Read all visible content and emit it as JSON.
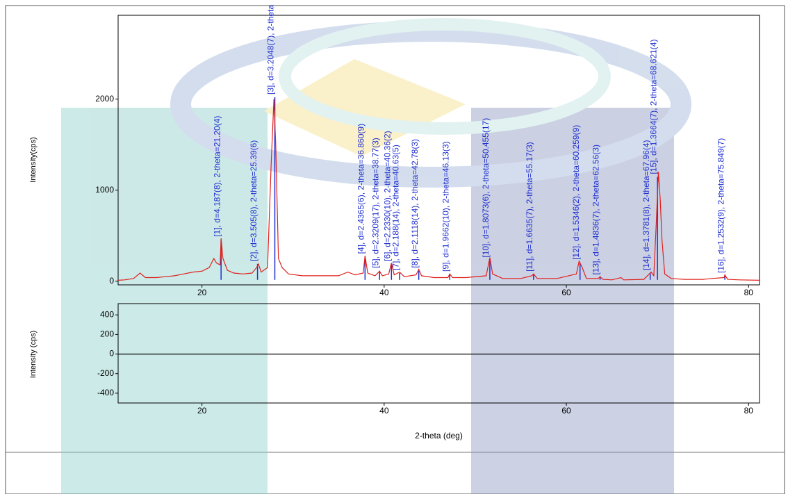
{
  "chart_data": [
    {
      "type": "line",
      "ylabel": "Intensity(cps)",
      "xlim": [
        10.8,
        81.2
      ],
      "ylim": [
        -40,
        2920
      ],
      "xticks": [
        20,
        40,
        60,
        80
      ],
      "yticks": [
        0,
        1000,
        2000
      ],
      "series": [
        {
          "color": "#e0201b",
          "x": [
            10.8,
            11.5,
            12.5,
            13.2,
            13.8,
            15,
            16,
            17,
            18,
            19,
            20,
            20.8,
            21.3,
            21.6,
            22.0,
            22.1,
            22.3,
            22.8,
            23.5,
            24.5,
            25.5,
            26.0,
            26.2,
            26.5,
            27.2,
            27.6,
            27.9,
            28.1,
            28.4,
            28.8,
            29.5,
            31,
            33,
            35,
            36,
            36.8,
            37.7,
            37.9,
            38.2,
            39,
            39.5,
            39.8,
            40.5,
            40.8,
            41.1,
            41.7,
            42.2,
            43.5,
            43.8,
            44.1,
            45.5,
            47.0,
            47.2,
            47.5,
            49,
            51.2,
            51.6,
            51.9,
            53,
            55,
            56.2,
            56.4,
            56.8,
            59,
            61.1,
            61.4,
            61.7,
            62.2,
            63.5,
            63.7,
            64.0,
            65,
            66,
            66.3,
            68.5,
            69.1,
            69.3,
            69.6,
            69.9,
            70.1,
            70.3,
            70.5,
            70.8,
            71.5,
            73,
            75,
            76,
            77.3,
            77.4,
            77.7,
            79,
            81.2
          ],
          "values": [
            10,
            15,
            30,
            90,
            40,
            40,
            50,
            60,
            80,
            100,
            110,
            150,
            250,
            200,
            180,
            470,
            250,
            120,
            90,
            80,
            90,
            150,
            190,
            100,
            150,
            1300,
            2000,
            1500,
            250,
            150,
            80,
            60,
            60,
            60,
            100,
            70,
            90,
            280,
            90,
            60,
            110,
            60,
            80,
            200,
            70,
            100,
            50,
            70,
            130,
            60,
            40,
            40,
            80,
            40,
            40,
            60,
            260,
            80,
            30,
            30,
            60,
            80,
            30,
            30,
            80,
            220,
            160,
            30,
            30,
            50,
            20,
            15,
            40,
            15,
            20,
            80,
            100,
            60,
            700,
            1200,
            900,
            450,
            80,
            30,
            20,
            20,
            30,
            40,
            70,
            20,
            15,
            10
          ]
        }
      ],
      "peak_color": "#1f2fd0",
      "peaks": [
        {
          "label": "[1], d=4.187(8), 2-theta=21.20(4)",
          "x": 22.1,
          "height": 458
        },
        {
          "label": "[2], d=3.505(8), 2-theta=25.39(6)",
          "x": 26.1,
          "height": 190
        },
        {
          "label": "[3], d=3.2048(7), 2-theta",
          "x": 28.0,
          "height": 2020
        },
        {
          "label": "[4], d=2.4365(6), 2-theta=36.860(9)",
          "x": 37.9,
          "height": 270
        },
        {
          "label": "[5], d=2.3209(17), 2-theta=38.77(3)",
          "x": 39.5,
          "height": 115
        },
        {
          "label": "[6], d=2.2330(10), 2-theta=40.36(2)",
          "x": 40.8,
          "height": 190
        },
        {
          "label": "[7], d=2.188(14), 2-theta=40.63(5)",
          "x": 41.7,
          "height": 90
        },
        {
          "label": "[8], d=2.1118(14), 2-theta=42.78(3)",
          "x": 43.8,
          "height": 115
        },
        {
          "label": "[9], d=1.9662(10), 2-theta=46.13(3)",
          "x": 47.2,
          "height": 75
        },
        {
          "label": "[10], d=1.8073(6), 2-theta=50.455(17)",
          "x": 51.6,
          "height": 230
        },
        {
          "label": "[11], d=1.6635(7), 2-theta=55.17(3)",
          "x": 56.4,
          "height": 75
        },
        {
          "label": "[12], d=1.5346(2), 2-theta=60.259(9)",
          "x": 61.5,
          "height": 205
        },
        {
          "label": "[13], d=1.4836(7), 2-theta=62.56(3)",
          "x": 63.7,
          "height": 40
        },
        {
          "label": "[14], d=1.3781(8), 2-theta=67.96(4)",
          "x": 69.2,
          "height": 90
        },
        {
          "label": "[15], d=1.3664(7), 2-theta=68.621(4)",
          "x": 70.0,
          "height": 1145
        },
        {
          "label": "[16], d=1.2532(9), 2-theta=75.849(7)",
          "x": 77.4,
          "height": 60
        }
      ]
    },
    {
      "type": "line",
      "ylabel": "Intensity (cps)",
      "xlabel": "2-theta (deg)",
      "xlim": [
        10.8,
        81.2
      ],
      "ylim": [
        -500,
        515
      ],
      "xticks": [
        20,
        40,
        60,
        80
      ],
      "yticks": [
        400,
        200,
        0,
        -200,
        -400
      ],
      "series": [
        {
          "color": "#000000",
          "x": [
            10.8,
            81.2
          ],
          "values": [
            0,
            0
          ]
        }
      ]
    }
  ]
}
